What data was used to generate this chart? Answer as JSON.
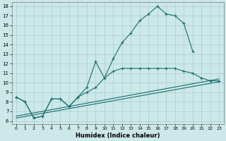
{
  "xlabel": "Humidex (Indice chaleur)",
  "background_color": "#cce8e8",
  "grid_color": "#aacccc",
  "line_color": "#1a6e6e",
  "xlim_min": -0.5,
  "xlim_max": 23.5,
  "ylim_min": 5.7,
  "ylim_max": 18.4,
  "xticks": [
    0,
    1,
    2,
    3,
    4,
    5,
    6,
    7,
    8,
    9,
    10,
    11,
    12,
    13,
    14,
    15,
    16,
    17,
    18,
    19,
    20,
    21,
    22,
    23
  ],
  "yticks": [
    6,
    7,
    8,
    9,
    10,
    11,
    12,
    13,
    14,
    15,
    16,
    17,
    18
  ],
  "line1_x": [
    0,
    1,
    2,
    3,
    4,
    5,
    6,
    7,
    8,
    9,
    10,
    11,
    12,
    13,
    14,
    15,
    16,
    17,
    18,
    19,
    20
  ],
  "line1_y": [
    8.5,
    8.0,
    6.3,
    6.5,
    8.3,
    8.3,
    7.5,
    8.5,
    9.5,
    12.2,
    10.5,
    12.5,
    14.2,
    15.2,
    16.5,
    17.2,
    18.0,
    17.2,
    17.0,
    16.2,
    13.3
  ],
  "line2_x": [
    0,
    1,
    2,
    3,
    4,
    5,
    6,
    7,
    8,
    9,
    10,
    11,
    12,
    13,
    14,
    15,
    16,
    17,
    18,
    19,
    20,
    21,
    22,
    23
  ],
  "line2_y": [
    8.5,
    8.0,
    6.3,
    6.5,
    8.3,
    8.3,
    7.5,
    8.5,
    9.0,
    9.5,
    10.5,
    11.2,
    11.5,
    11.5,
    11.5,
    11.5,
    11.5,
    11.5,
    11.5,
    11.2,
    11.0,
    10.5,
    10.2,
    10.2
  ],
  "line3_x": [
    0,
    23
  ],
  "line3_y": [
    6.5,
    10.4
  ],
  "line4_x": [
    0,
    23
  ],
  "line4_y": [
    6.3,
    10.1
  ]
}
